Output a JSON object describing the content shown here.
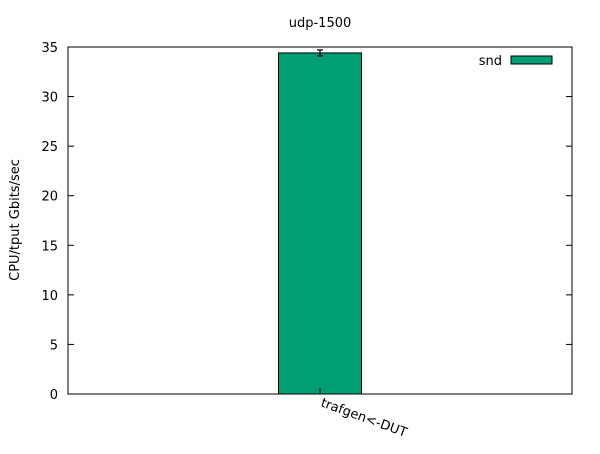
{
  "chart_data": {
    "type": "bar",
    "title": "udp-1500",
    "xlabel": "",
    "ylabel": "CPU/tput Gbits/sec",
    "categories": [
      "trafgen<-DUT"
    ],
    "series": [
      {
        "name": "snd",
        "values": [
          34.4
        ],
        "errors": [
          0.3
        ],
        "color": "#009e73"
      }
    ],
    "ylim": [
      0,
      35
    ],
    "yticks": [
      0,
      5,
      10,
      15,
      20,
      25,
      30,
      35
    ],
    "grid": false,
    "legend": "top-right"
  }
}
